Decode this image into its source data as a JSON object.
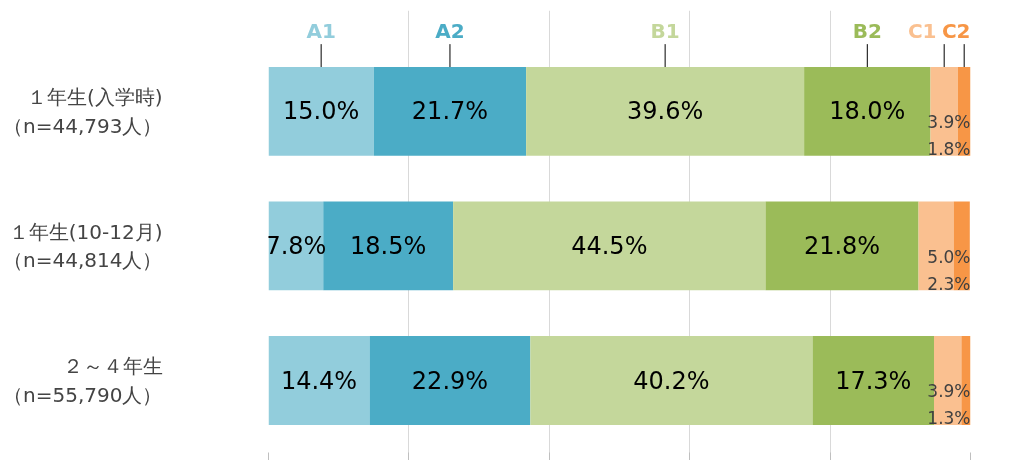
{
  "chart_data": {
    "type": "bar",
    "orientation": "horizontal",
    "stacked": true,
    "categories": [
      "１年生(入学時)（n=44,793人）",
      "１年生(10-12月)（n=44,814人）",
      "２～４年生（n=55,790人）"
    ],
    "series": [
      {
        "name": "A1",
        "color": "#92cddc",
        "values": [
          15.0,
          7.8,
          14.4
        ],
        "value_labels": [
          "15.0%",
          "7.8%",
          "14.4%"
        ]
      },
      {
        "name": "A2",
        "color": "#4bacc6",
        "values": [
          21.7,
          18.5,
          22.9
        ],
        "value_labels": [
          "21.7%",
          "18.5%",
          "22.9%"
        ]
      },
      {
        "name": "B1",
        "color": "#c4d79b",
        "values": [
          39.6,
          44.5,
          40.2
        ],
        "value_labels": [
          "39.6%",
          "44.5%",
          "40.2%"
        ]
      },
      {
        "name": "B2",
        "color": "#9bbb59",
        "values": [
          18.0,
          21.8,
          17.3
        ],
        "value_labels": [
          "18.0%",
          "21.8%",
          "17.3%"
        ]
      },
      {
        "name": "C1",
        "color": "#fac090",
        "values": [
          3.9,
          5.0,
          3.9
        ],
        "value_labels": [
          "3.9%",
          "5.0%",
          "3.9%"
        ]
      },
      {
        "name": "C2",
        "color": "#f79646",
        "values": [
          1.8,
          2.3,
          1.3
        ],
        "value_labels": [
          "1.8%",
          "2.3%",
          "1.3%"
        ]
      }
    ],
    "xlim": [
      0,
      100
    ],
    "xticks": [
      {
        "value": 0,
        "label": null
      },
      {
        "value": 20,
        "label": null
      },
      {
        "value": 40,
        "label": null
      },
      {
        "value": 60,
        "label": null
      },
      {
        "value": 80,
        "label": null
      },
      {
        "value": 100,
        "label": null
      }
    ],
    "grid": "x",
    "tick_labels": "y",
    "legend": "top"
  }
}
